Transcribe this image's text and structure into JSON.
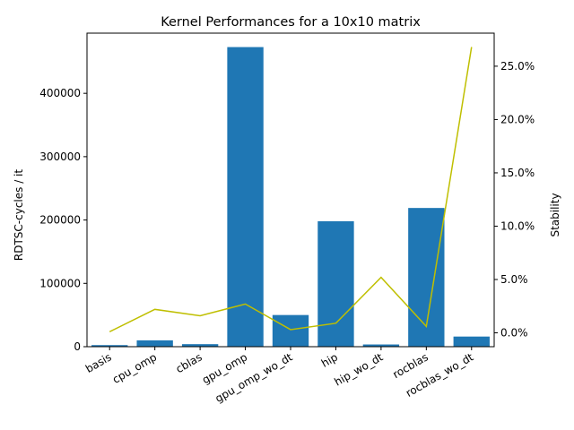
{
  "chart_data": {
    "type": "bar",
    "title": "Kernel Performances for a 10x10 matrix",
    "xlabel": "",
    "ylabel": "RDTSC-cycles / it",
    "y2label": "Stability",
    "categories": [
      "basis",
      "cpu_omp",
      "cblas",
      "gpu_omp",
      "gpu_omp_wo_dt",
      "hip",
      "hip_wo_dt",
      "rocblas",
      "rocblas_wo_dt"
    ],
    "series": [
      {
        "type": "bar",
        "axis": "left",
        "color": "#1f77b4",
        "values": [
          2500,
          10000,
          4000,
          473000,
          50000,
          198000,
          3500,
          219000,
          16000
        ]
      },
      {
        "type": "line",
        "axis": "right",
        "color": "#bfbf00",
        "values": [
          0.1,
          2.2,
          1.6,
          2.7,
          0.3,
          0.9,
          5.2,
          0.6,
          26.8
        ]
      }
    ],
    "ylim": [
      0,
      495000
    ],
    "y2lim": [
      -1.3,
      28.1
    ],
    "yticks": [
      0,
      100000,
      200000,
      300000,
      400000
    ],
    "y2ticks": [
      0,
      5,
      10,
      15,
      20,
      25
    ],
    "y2tick_labels": [
      "0.0%",
      "5.0%",
      "10.0%",
      "15.0%",
      "20.0%",
      "25.0%"
    ],
    "grid": false,
    "legend": "none"
  }
}
